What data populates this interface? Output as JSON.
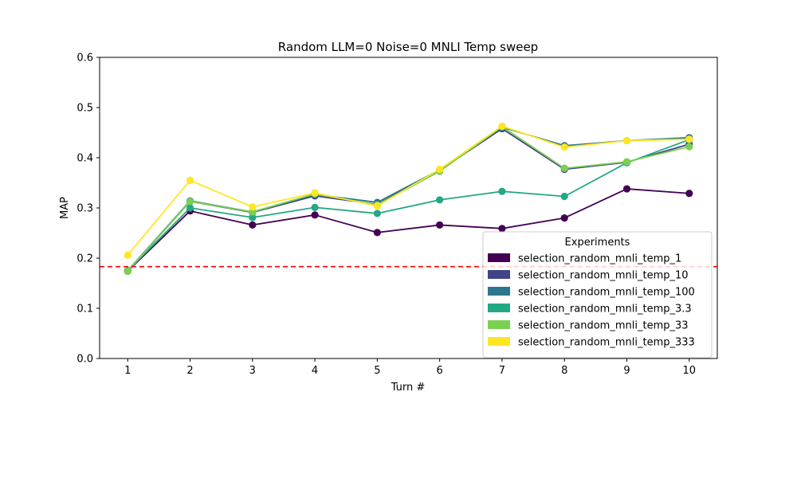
{
  "chart_data": {
    "type": "line",
    "title": "Random LLM=0 Noise=0 MNLI Temp sweep",
    "xlabel": "Turn #",
    "ylabel": "MAP",
    "x": [
      1,
      2,
      3,
      4,
      5,
      6,
      7,
      8,
      9,
      10
    ],
    "ylim": [
      0.0,
      0.6
    ],
    "yticks": [
      0.0,
      0.1,
      0.2,
      0.3,
      0.4,
      0.5,
      0.6
    ],
    "grid": false,
    "baseline": {
      "value": 0.183,
      "color": "#ff0000",
      "style": "dashed"
    },
    "legend": {
      "title": "Experiments",
      "placement": "lower-right"
    },
    "series": [
      {
        "name": "selection_random_mnli_temp_1",
        "color": "#440154",
        "values": [
          0.174,
          0.294,
          0.266,
          0.286,
          0.251,
          0.266,
          0.259,
          0.28,
          0.338,
          0.329
        ]
      },
      {
        "name": "selection_random_mnli_temp_10",
        "color": "#414487",
        "values": [
          0.174,
          0.313,
          0.291,
          0.324,
          0.307,
          0.375,
          0.458,
          0.377,
          0.391,
          0.427
        ]
      },
      {
        "name": "selection_random_mnli_temp_100",
        "color": "#2a788e",
        "values": [
          0.175,
          0.314,
          0.292,
          0.327,
          0.311,
          0.376,
          0.461,
          0.424,
          0.434,
          0.44
        ]
      },
      {
        "name": "selection_random_mnli_temp_3.3",
        "color": "#22a884",
        "values": [
          0.175,
          0.3,
          0.281,
          0.301,
          0.289,
          0.316,
          0.333,
          0.323,
          0.39,
          0.436
        ]
      },
      {
        "name": "selection_random_mnli_temp_33",
        "color": "#7ad151",
        "values": [
          0.174,
          0.313,
          0.292,
          0.328,
          0.306,
          0.373,
          0.462,
          0.379,
          0.392,
          0.422
        ]
      },
      {
        "name": "selection_random_mnli_temp_333",
        "color": "#fde725",
        "values": [
          0.206,
          0.355,
          0.302,
          0.33,
          0.304,
          0.377,
          0.463,
          0.421,
          0.434,
          0.437
        ]
      }
    ]
  }
}
